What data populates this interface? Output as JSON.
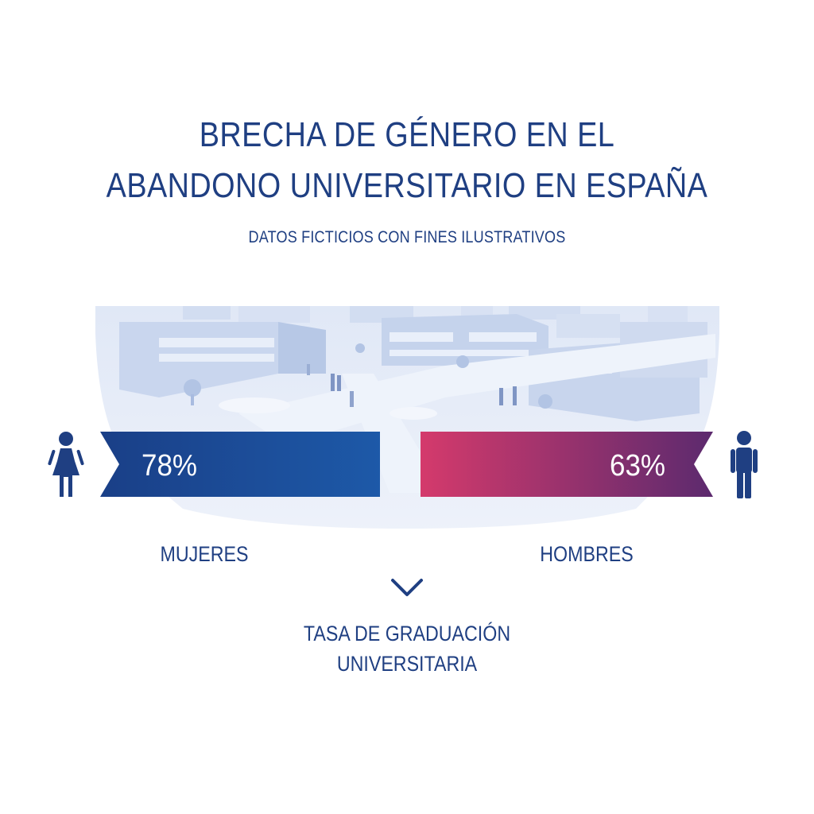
{
  "title_line1": "BRECHA DE GÉNERO EN EL",
  "title_line2": "ABANDONO UNIVERSITARIO EN ESPAÑA",
  "subtitle": "DATOS FICTICIOS CON FINES ILUSTRATIVOS",
  "note_line1": "TASA DE GRADUACIÓN",
  "note_line2": "UNIVERSITARIA",
  "colors": {
    "primary_text": "#1f3f82",
    "women_bar_start": "#1a3f87",
    "women_bar_end": "#1d59a8",
    "men_bar_start": "#d43a6c",
    "men_bar_end": "#5c2a6e",
    "icon": "#1f3f82"
  },
  "chart_data": {
    "type": "bar",
    "categories": [
      "MUJERES",
      "HOMBRES"
    ],
    "values": [
      78,
      63
    ],
    "value_labels": [
      "78%",
      "63%"
    ],
    "icons": [
      "woman-icon",
      "man-icon"
    ],
    "unit": "%"
  }
}
